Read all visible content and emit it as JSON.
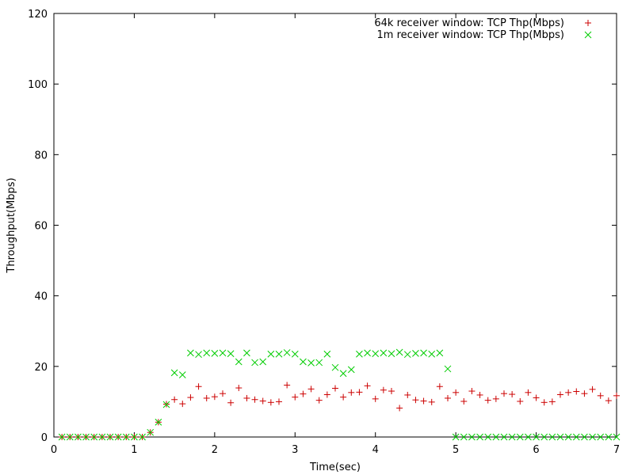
{
  "chart_data": {
    "type": "scatter",
    "xlabel": "Time(sec)",
    "ylabel": "Throughput(Mbps)",
    "xlim": [
      0,
      7
    ],
    "ylim": [
      0,
      120
    ],
    "xticks": [
      0,
      1,
      2,
      3,
      4,
      5,
      6,
      7
    ],
    "yticks": [
      0,
      20,
      40,
      60,
      80,
      100,
      120
    ],
    "grid": false,
    "legend_position": "top-right",
    "series": [
      {
        "name": "64k receiver window: TCP Thp(Mbps)",
        "marker": "plus",
        "color": "#cc0000",
        "x": [
          0.1,
          0.2,
          0.3,
          0.4,
          0.5,
          0.6,
          0.7,
          0.8,
          0.9,
          1.0,
          1.1,
          1.2,
          1.3,
          1.4,
          1.5,
          1.6,
          1.7,
          1.8,
          1.9,
          2.0,
          2.1,
          2.2,
          2.3,
          2.4,
          2.5,
          2.6,
          2.7,
          2.8,
          2.9,
          3.0,
          3.1,
          3.2,
          3.3,
          3.4,
          3.5,
          3.6,
          3.7,
          3.8,
          3.9,
          4.0,
          4.1,
          4.2,
          4.3,
          4.4,
          4.5,
          4.6,
          4.7,
          4.8,
          4.9,
          5.0,
          5.1,
          5.2,
          5.3,
          5.4,
          5.5,
          5.6,
          5.7,
          5.8,
          5.9,
          6.0,
          6.1,
          6.2,
          6.3,
          6.4,
          6.5,
          6.6,
          6.7,
          6.8,
          6.9,
          7.0
        ],
        "y": [
          0,
          0,
          0,
          0,
          0,
          0,
          0,
          0,
          0,
          0,
          0,
          1.3,
          4.2,
          9.3,
          10.6,
          9.4,
          11.2,
          14.3,
          11.0,
          11.4,
          12.3,
          9.7,
          13.9,
          11.0,
          10.6,
          10.2,
          9.8,
          10.0,
          14.7,
          11.3,
          12.2,
          13.6,
          10.4,
          12.0,
          13.8,
          11.3,
          12.6,
          12.7,
          14.5,
          10.8,
          13.3,
          13.0,
          8.2,
          11.9,
          10.5,
          10.2,
          9.9,
          14.3,
          11.0,
          12.6,
          10.1,
          13.0,
          11.9,
          10.4,
          10.8,
          12.3,
          12.1,
          10.1,
          12.6,
          11.1,
          9.8,
          10.0,
          12.0,
          12.6,
          12.9,
          12.3,
          13.5,
          11.7,
          10.3,
          11.7
        ]
      },
      {
        "name": "1m receiver window: TCP Thp(Mbps)",
        "marker": "cross",
        "color": "#00cc00",
        "x": [
          0.1,
          0.2,
          0.3,
          0.4,
          0.5,
          0.6,
          0.7,
          0.8,
          0.9,
          1.0,
          1.1,
          1.2,
          1.3,
          1.4,
          1.5,
          1.6,
          1.7,
          1.8,
          1.9,
          2.0,
          2.1,
          2.2,
          2.3,
          2.4,
          2.5,
          2.6,
          2.7,
          2.8,
          2.9,
          3.0,
          3.1,
          3.2,
          3.3,
          3.4,
          3.5,
          3.6,
          3.7,
          3.8,
          3.9,
          4.0,
          4.1,
          4.2,
          4.3,
          4.4,
          4.5,
          4.6,
          4.7,
          4.8,
          4.9,
          5.0,
          5.1,
          5.2,
          5.3,
          5.4,
          5.5,
          5.6,
          5.7,
          5.8,
          5.9,
          6.0,
          6.1,
          6.2,
          6.3,
          6.4,
          6.5,
          6.6,
          6.7,
          6.8,
          6.9,
          7.0
        ],
        "y": [
          0,
          0,
          0,
          0,
          0,
          0,
          0,
          0,
          0,
          0,
          0,
          1.3,
          4.2,
          9.2,
          18.2,
          17.6,
          23.8,
          23.4,
          23.8,
          23.7,
          23.8,
          23.6,
          21.3,
          23.8,
          21.1,
          21.3,
          23.5,
          23.5,
          23.9,
          23.5,
          21.3,
          21.0,
          21.1,
          23.5,
          19.7,
          18.0,
          19.1,
          23.5,
          23.8,
          23.6,
          23.8,
          23.6,
          24.0,
          23.4,
          23.7,
          23.8,
          23.5,
          23.8,
          19.3,
          0,
          0,
          0,
          0,
          0,
          0,
          0,
          0,
          0,
          0,
          0,
          0,
          0,
          0,
          0,
          0,
          0,
          0,
          0,
          0,
          0
        ]
      }
    ]
  }
}
